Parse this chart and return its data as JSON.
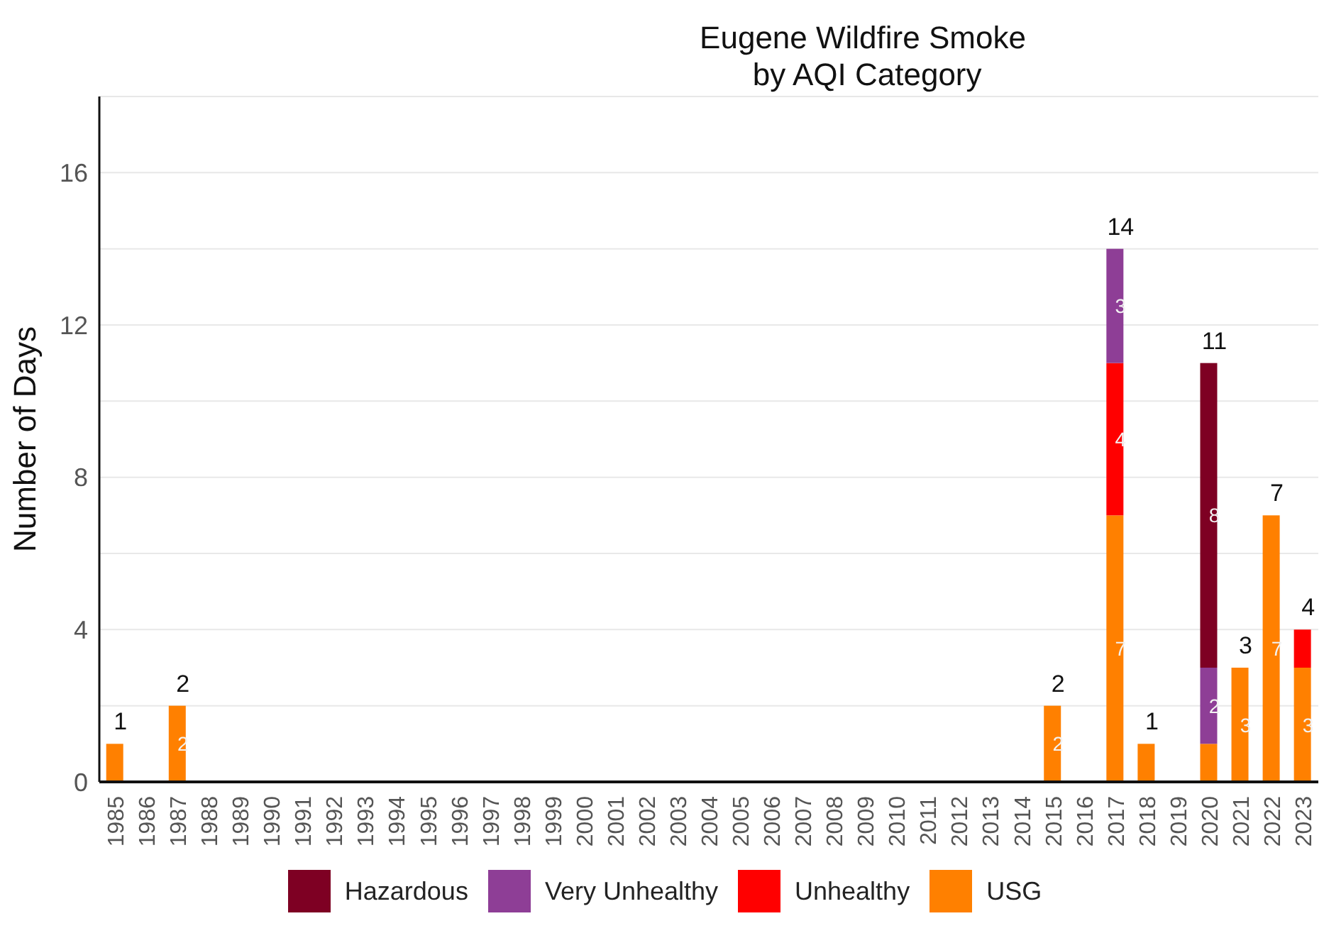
{
  "chart_data": {
    "type": "bar",
    "title": "Eugene Wildfire Smoke\n by AQI Category",
    "ylabel": "Number of Days",
    "stacked": true,
    "categories": [
      "1985",
      "1986",
      "1987",
      "1988",
      "1989",
      "1990",
      "1991",
      "1992",
      "1993",
      "1994",
      "1995",
      "1996",
      "1997",
      "1998",
      "1999",
      "2000",
      "2001",
      "2002",
      "2003",
      "2004",
      "2005",
      "2006",
      "2007",
      "2008",
      "2009",
      "2010",
      "2011",
      "2012",
      "2013",
      "2014",
      "2015",
      "2016",
      "2017",
      "2018",
      "2019",
      "2020",
      "2021",
      "2022",
      "2023"
    ],
    "series": [
      {
        "name": "USG",
        "color": "#ff8000",
        "values": [
          1,
          null,
          2,
          null,
          null,
          null,
          null,
          null,
          null,
          null,
          null,
          null,
          null,
          null,
          null,
          null,
          null,
          null,
          null,
          null,
          null,
          null,
          null,
          null,
          null,
          null,
          null,
          null,
          null,
          null,
          2,
          null,
          7,
          1,
          null,
          1,
          3,
          7,
          3
        ],
        "value_labels": [
          null,
          null,
          "2",
          null,
          null,
          null,
          null,
          null,
          null,
          null,
          null,
          null,
          null,
          null,
          null,
          null,
          null,
          null,
          null,
          null,
          null,
          null,
          null,
          null,
          null,
          null,
          null,
          null,
          null,
          null,
          "2",
          null,
          "7",
          null,
          null,
          null,
          "3",
          "7",
          "3"
        ]
      },
      {
        "name": "Unhealthy",
        "color": "#ff0000",
        "values": [
          null,
          null,
          null,
          null,
          null,
          null,
          null,
          null,
          null,
          null,
          null,
          null,
          null,
          null,
          null,
          null,
          null,
          null,
          null,
          null,
          null,
          null,
          null,
          null,
          null,
          null,
          null,
          null,
          null,
          null,
          null,
          null,
          4,
          null,
          null,
          null,
          null,
          null,
          1
        ],
        "value_labels": [
          null,
          null,
          null,
          null,
          null,
          null,
          null,
          null,
          null,
          null,
          null,
          null,
          null,
          null,
          null,
          null,
          null,
          null,
          null,
          null,
          null,
          null,
          null,
          null,
          null,
          null,
          null,
          null,
          null,
          null,
          null,
          null,
          "4",
          null,
          null,
          null,
          null,
          null,
          null
        ]
      },
      {
        "name": "Very Unhealthy",
        "color": "#8e3e96",
        "values": [
          null,
          null,
          null,
          null,
          null,
          null,
          null,
          null,
          null,
          null,
          null,
          null,
          null,
          null,
          null,
          null,
          null,
          null,
          null,
          null,
          null,
          null,
          null,
          null,
          null,
          null,
          null,
          null,
          null,
          null,
          null,
          null,
          3,
          null,
          null,
          2,
          null,
          null,
          null
        ],
        "value_labels": [
          null,
          null,
          null,
          null,
          null,
          null,
          null,
          null,
          null,
          null,
          null,
          null,
          null,
          null,
          null,
          null,
          null,
          null,
          null,
          null,
          null,
          null,
          null,
          null,
          null,
          null,
          null,
          null,
          null,
          null,
          null,
          null,
          "3",
          null,
          null,
          "2",
          null,
          null,
          null
        ]
      },
      {
        "name": "Hazardous",
        "color": "#7e0023",
        "values": [
          null,
          null,
          null,
          null,
          null,
          null,
          null,
          null,
          null,
          null,
          null,
          null,
          null,
          null,
          null,
          null,
          null,
          null,
          null,
          null,
          null,
          null,
          null,
          null,
          null,
          null,
          null,
          null,
          null,
          null,
          null,
          null,
          null,
          null,
          null,
          8,
          null,
          null,
          null
        ],
        "value_labels": [
          null,
          null,
          null,
          null,
          null,
          null,
          null,
          null,
          null,
          null,
          null,
          null,
          null,
          null,
          null,
          null,
          null,
          null,
          null,
          null,
          null,
          null,
          null,
          null,
          null,
          null,
          null,
          null,
          null,
          null,
          null,
          null,
          null,
          null,
          null,
          "8",
          null,
          null,
          null
        ]
      }
    ],
    "totals": [
      "1",
      null,
      "2",
      null,
      null,
      null,
      null,
      null,
      null,
      null,
      null,
      null,
      null,
      null,
      null,
      null,
      null,
      null,
      null,
      null,
      null,
      null,
      null,
      null,
      null,
      null,
      null,
      null,
      null,
      null,
      "2",
      null,
      "14",
      "1",
      null,
      "11",
      "3",
      "7",
      "4"
    ],
    "ylim": [
      0,
      18
    ],
    "yticks": [
      0,
      {
        "value": 2,
        "label": null
      },
      4,
      {
        "value": 6,
        "label": null
      },
      8,
      {
        "value": 10,
        "label": null
      },
      12,
      {
        "value": 14,
        "label": null
      },
      16,
      {
        "value": 18,
        "label": null
      }
    ],
    "grid": "y",
    "legend": "bottom"
  }
}
